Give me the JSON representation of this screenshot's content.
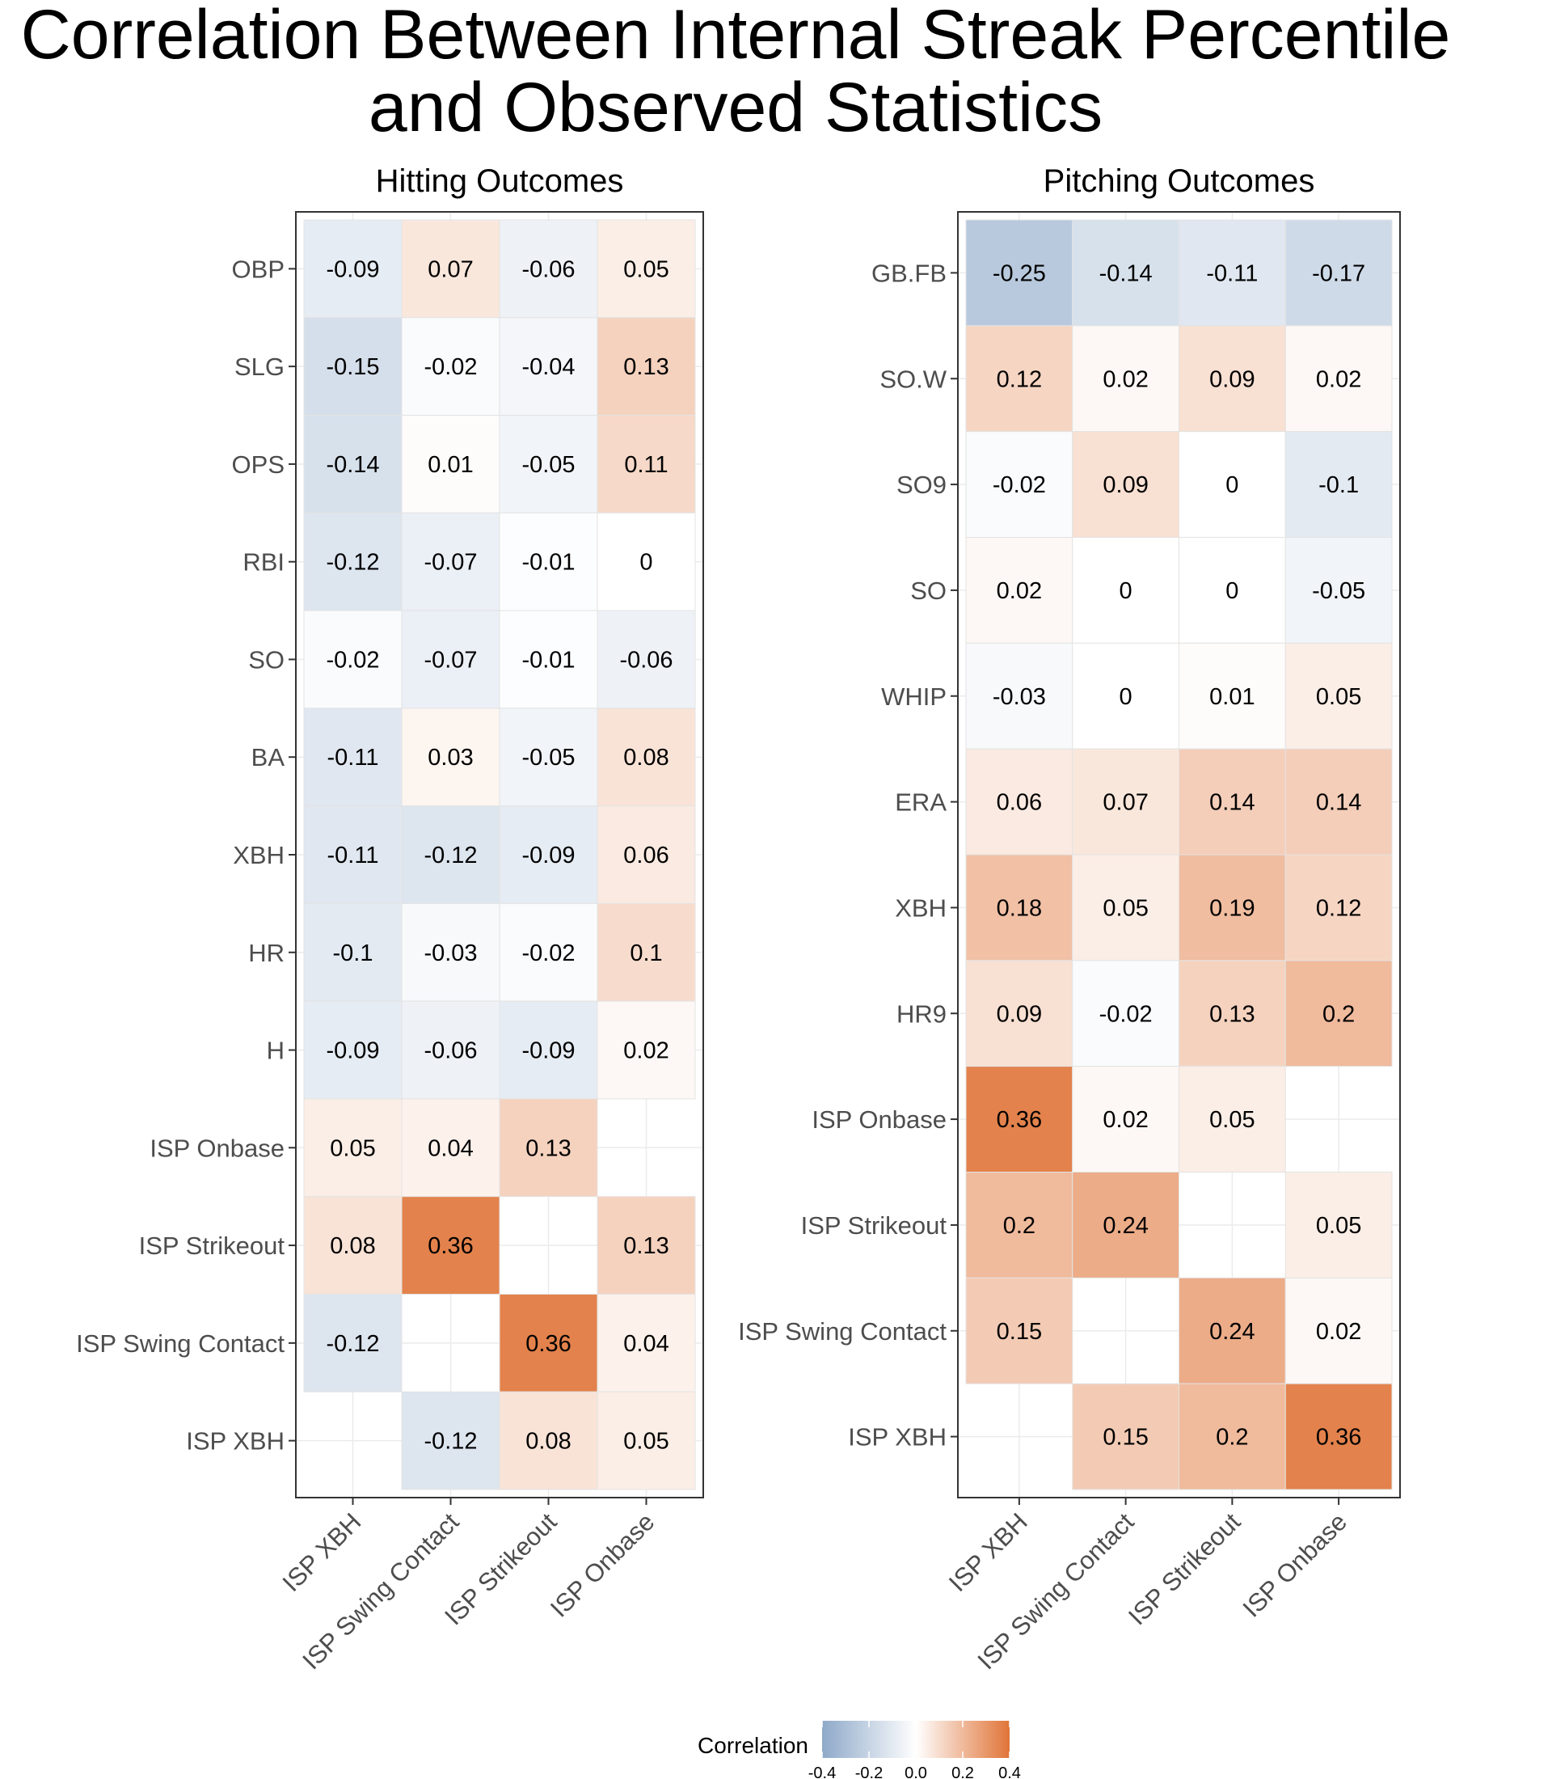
{
  "title_lines": [
    "Correlation Between Internal Streak Percentile",
    "and Observed Statistics"
  ],
  "legend": {
    "title": "Correlation",
    "ticks": [
      -0.4,
      -0.2,
      0.0,
      0.2,
      0.4
    ],
    "tick_labels": [
      "-0.4",
      "-0.2",
      "0.0",
      "0.2",
      "0.4"
    ],
    "low_color": "#8ea9c9",
    "mid_color": "#ffffff",
    "high_color": "#e07438",
    "limits": [
      -0.4,
      0.4
    ]
  },
  "chart_data": [
    {
      "type": "heatmap",
      "title": "Hitting Outcomes",
      "x_categories": [
        "ISP XBH",
        "ISP Swing Contact",
        "ISP Strikeout",
        "ISP Onbase"
      ],
      "y_categories": [
        "OBP",
        "SLG",
        "OPS",
        "RBI",
        "SO",
        "BA",
        "XBH",
        "HR",
        "H",
        "ISP Onbase",
        "ISP Strikeout",
        "ISP Swing Contact",
        "ISP XBH"
      ],
      "values": [
        [
          -0.09,
          0.07,
          -0.06,
          0.05
        ],
        [
          -0.15,
          -0.02,
          -0.04,
          0.13
        ],
        [
          -0.14,
          0.01,
          -0.05,
          0.11
        ],
        [
          -0.12,
          -0.07,
          -0.01,
          0
        ],
        [
          -0.02,
          -0.07,
          -0.01,
          -0.06
        ],
        [
          -0.11,
          0.03,
          -0.05,
          0.08
        ],
        [
          -0.11,
          -0.12,
          -0.09,
          0.06
        ],
        [
          -0.1,
          -0.03,
          -0.02,
          0.1
        ],
        [
          -0.09,
          -0.06,
          -0.09,
          0.02
        ],
        [
          0.05,
          0.04,
          0.13,
          null
        ],
        [
          0.08,
          0.36,
          null,
          0.13
        ],
        [
          -0.12,
          null,
          0.36,
          0.04
        ],
        [
          null,
          -0.12,
          0.08,
          0.05
        ]
      ]
    },
    {
      "type": "heatmap",
      "title": "Pitching Outcomes",
      "x_categories": [
        "ISP XBH",
        "ISP Swing Contact",
        "ISP Strikeout",
        "ISP Onbase"
      ],
      "y_categories": [
        "GB.FB",
        "SO.W",
        "SO9",
        "SO",
        "WHIP",
        "ERA",
        "XBH",
        "HR9",
        "ISP Onbase",
        "ISP Strikeout",
        "ISP Swing Contact",
        "ISP XBH"
      ],
      "values": [
        [
          -0.25,
          -0.14,
          -0.11,
          -0.17
        ],
        [
          0.12,
          0.02,
          0.09,
          0.02
        ],
        [
          -0.02,
          0.09,
          0,
          -0.1
        ],
        [
          0.02,
          0,
          0,
          -0.05
        ],
        [
          -0.03,
          0,
          0.01,
          0.05
        ],
        [
          0.06,
          0.07,
          0.14,
          0.14
        ],
        [
          0.18,
          0.05,
          0.19,
          0.12
        ],
        [
          0.09,
          -0.02,
          0.13,
          0.2
        ],
        [
          0.36,
          0.02,
          0.05,
          null
        ],
        [
          0.2,
          0.24,
          null,
          0.05
        ],
        [
          0.15,
          null,
          0.24,
          0.02
        ],
        [
          null,
          0.15,
          0.2,
          0.36
        ]
      ]
    }
  ]
}
